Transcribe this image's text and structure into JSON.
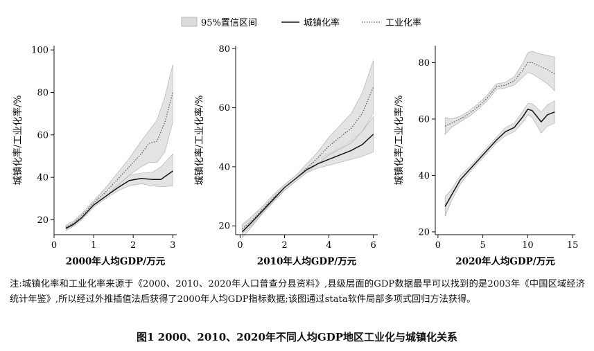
{
  "legend": {
    "ci_label": "95%置信区间",
    "urban_label": "城镇化率",
    "industry_label": "工业化率"
  },
  "colors": {
    "ci_fill": "#dcdcdc",
    "ci_edge": "#aaaaaa",
    "urban_line": "#111111",
    "industry_line": "#555555"
  },
  "chart_data": [
    {
      "type": "line",
      "xlabel": "2000年人均GDP/万元",
      "ylabel": "城镇化率/工业化率/%",
      "xlim": [
        0,
        3.1
      ],
      "ylim": [
        13,
        102
      ],
      "xticks": [
        0,
        1,
        2,
        3
      ],
      "yticks": [
        20,
        40,
        60,
        80,
        100
      ],
      "grid": false,
      "series": [
        {
          "name": "城镇化率",
          "style": "solid",
          "x": [
            0.3,
            0.5,
            0.7,
            1.0,
            1.3,
            1.6,
            1.9,
            2.2,
            2.5,
            2.7,
            3.0
          ],
          "y": [
            16,
            18,
            21,
            27,
            31,
            35,
            38.5,
            39.5,
            39,
            39,
            43
          ],
          "ci_low": [
            15,
            17,
            20,
            26,
            30,
            33.5,
            36,
            37,
            36,
            35.5,
            36
          ],
          "ci_high": [
            17,
            19,
            22,
            28,
            32,
            36.5,
            41,
            42,
            42.5,
            45,
            51
          ]
        },
        {
          "name": "工业化率",
          "style": "dotted",
          "x": [
            0.3,
            0.5,
            0.7,
            1.0,
            1.3,
            1.6,
            1.9,
            2.2,
            2.4,
            2.6,
            2.8,
            3.0
          ],
          "y": [
            16.5,
            18.5,
            22,
            28,
            33,
            39,
            45,
            51,
            56,
            57,
            66,
            80
          ],
          "ci_low": [
            15.5,
            17.5,
            21,
            27,
            31,
            36,
            41,
            45,
            47,
            47,
            52,
            66
          ],
          "ci_high": [
            17.5,
            19.5,
            23,
            29,
            35,
            42,
            49,
            57,
            62,
            67,
            78,
            93
          ]
        }
      ]
    },
    {
      "type": "line",
      "xlabel": "2010年人均GDP/万元",
      "ylabel": "城镇化率/工业化率/%",
      "xlim": [
        -0.2,
        6.2
      ],
      "ylim": [
        17,
        81
      ],
      "xticks": [
        0,
        2,
        4,
        6
      ],
      "yticks": [
        20,
        40,
        60,
        80
      ],
      "grid": false,
      "series": [
        {
          "name": "城镇化率",
          "style": "solid",
          "x": [
            0.1,
            0.5,
            1.0,
            1.5,
            2.0,
            2.5,
            3.0,
            3.5,
            4.0,
            4.5,
            5.0,
            5.5,
            6.0
          ],
          "y": [
            18,
            21,
            25,
            29,
            33,
            36,
            39,
            41,
            42.5,
            44,
            45.5,
            47.5,
            51
          ],
          "ci_low": [
            16,
            19.5,
            24,
            28,
            32,
            35,
            38,
            39.5,
            40.5,
            41.5,
            42.5,
            43.5,
            45
          ],
          "ci_high": [
            20,
            22.5,
            26,
            30,
            34,
            37,
            40,
            42.5,
            44.5,
            46.5,
            49,
            52,
            57
          ]
        },
        {
          "name": "工业化率",
          "style": "dotted",
          "x": [
            0.1,
            0.5,
            1.0,
            1.5,
            2.0,
            2.5,
            3.0,
            3.5,
            4.0,
            4.5,
            5.0,
            5.5,
            6.0
          ],
          "y": [
            19,
            21.5,
            25.5,
            29.5,
            33,
            36,
            39.5,
            43,
            47,
            50,
            53,
            58,
            67
          ],
          "ci_low": [
            17.5,
            20,
            24.5,
            28.5,
            32,
            35,
            38,
            41,
            44,
            46,
            48,
            52,
            58
          ],
          "ci_high": [
            20.5,
            23,
            26.5,
            30.5,
            34,
            37,
            41,
            45,
            50,
            54,
            58,
            65,
            76
          ]
        }
      ]
    },
    {
      "type": "line",
      "xlabel": "2020年人均GDP/万元",
      "ylabel": "城镇化率/工业化率/%",
      "xlim": [
        -0.3,
        15.3
      ],
      "ylim": [
        19,
        86
      ],
      "xticks": [
        0,
        5,
        10,
        15
      ],
      "yticks": [
        20,
        40,
        60,
        80
      ],
      "grid": false,
      "series": [
        {
          "name": "城镇化率",
          "style": "solid",
          "x": [
            0.8,
            1.5,
            2.5,
            3.5,
            4.5,
            5.5,
            6.5,
            7.5,
            8.5,
            9.5,
            10.0,
            10.5,
            11.5,
            12.2,
            13.0
          ],
          "y": [
            29,
            33,
            38.5,
            42,
            45.5,
            49,
            52.5,
            55.5,
            57,
            61,
            63.5,
            63,
            59,
            61.5,
            62.5
          ],
          "ci_low": [
            25.5,
            31,
            37,
            41,
            44.5,
            48,
            51.5,
            54,
            55.5,
            59,
            61.5,
            60.5,
            55,
            57.5,
            58.5
          ],
          "ci_high": [
            32.5,
            35,
            40,
            43,
            46.5,
            50,
            53.5,
            57,
            58.5,
            63,
            65.5,
            65.5,
            62.5,
            65,
            66.5
          ]
        },
        {
          "name": "工业化率",
          "style": "dotted",
          "x": [
            0.8,
            1.5,
            2.5,
            3.5,
            4.5,
            5.5,
            6.5,
            7.5,
            8.5,
            9.5,
            10.0,
            10.5,
            11.5,
            12.2,
            13.0
          ],
          "y": [
            57.5,
            58.5,
            60,
            62,
            64.5,
            67.5,
            71.5,
            72,
            73.5,
            77.5,
            80,
            80,
            78.5,
            77.5,
            76
          ],
          "ci_low": [
            54.5,
            57,
            59,
            61,
            63.5,
            66.5,
            70.5,
            71,
            72,
            75,
            76.5,
            76,
            74,
            72.5,
            70
          ],
          "ci_high": [
            60.5,
            60,
            61,
            63,
            65.5,
            68.5,
            72.5,
            73,
            75,
            80,
            83.5,
            84,
            83,
            82.5,
            82
          ]
        }
      ]
    }
  ],
  "note": "注:城镇化率和工业化率来源于《2000、2010、2020年人口普查分县资料》,县级层面的GDP数据最早可以找到的是2003年《中国区域经济统计年鉴》,所以经过外推插值法后获得了2000年人均GDP指标数据;该图通过stata软件局部多项式回归方法获得。",
  "caption": "图1 2000、2010、2020年不同人均GDP地区工业化与城镇化关系"
}
